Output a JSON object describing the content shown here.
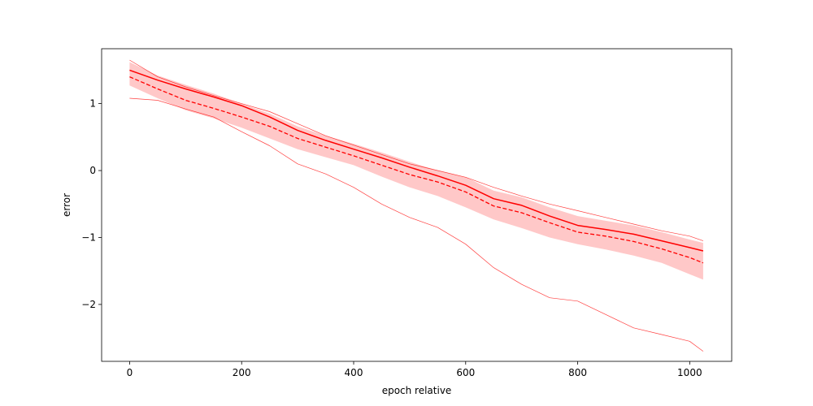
{
  "chart_data": {
    "type": "line",
    "title": "",
    "xlabel": "epoch relative",
    "ylabel": "error",
    "xlim": [
      -50,
      1075
    ],
    "ylim": [
      -2.85,
      1.82
    ],
    "xticks": [
      0,
      200,
      400,
      600,
      800,
      1000
    ],
    "yticks": [
      1,
      0,
      -1,
      -2
    ],
    "ytick_labels": [
      "1",
      "0",
      "−1",
      "−2"
    ],
    "grid": false,
    "legend": "none",
    "color": "#ff0000",
    "band_color": "#ffc8c8",
    "x": [
      0,
      50,
      100,
      150,
      200,
      250,
      300,
      350,
      400,
      450,
      500,
      550,
      600,
      650,
      700,
      750,
      800,
      850,
      900,
      950,
      1000,
      1024
    ],
    "series": [
      {
        "style": "solid",
        "values": [
          1.5,
          1.35,
          1.22,
          1.1,
          0.97,
          0.8,
          0.6,
          0.45,
          0.32,
          0.19,
          0.05,
          -0.08,
          -0.22,
          -0.42,
          -0.52,
          -0.68,
          -0.82,
          -0.88,
          -0.95,
          -1.05,
          -1.15,
          -1.2
        ]
      },
      {
        "style": "dashed",
        "values": [
          1.4,
          1.22,
          1.05,
          0.93,
          0.8,
          0.66,
          0.48,
          0.35,
          0.22,
          0.08,
          -0.06,
          -0.17,
          -0.32,
          -0.53,
          -0.63,
          -0.78,
          -0.92,
          -0.98,
          -1.06,
          -1.17,
          -1.3,
          -1.38
        ]
      },
      {
        "style": "thin",
        "values": [
          1.65,
          1.4,
          1.25,
          1.12,
          1.0,
          0.88,
          0.7,
          0.52,
          0.38,
          0.24,
          0.1,
          0.0,
          -0.1,
          -0.25,
          -0.38,
          -0.5,
          -0.6,
          -0.7,
          -0.8,
          -0.9,
          -0.98,
          -1.05
        ]
      },
      {
        "style": "thin",
        "values": [
          1.08,
          1.05,
          0.92,
          0.8,
          0.58,
          0.37,
          0.1,
          -0.05,
          -0.25,
          -0.5,
          -0.7,
          -0.85,
          -1.1,
          -1.45,
          -1.7,
          -1.9,
          -1.95,
          -2.15,
          -2.35,
          -2.45,
          -2.55,
          -2.7
        ]
      }
    ],
    "band": {
      "upper": [
        1.62,
        1.42,
        1.28,
        1.15,
        1.0,
        0.85,
        0.66,
        0.52,
        0.4,
        0.27,
        0.13,
        0.0,
        -0.1,
        -0.3,
        -0.4,
        -0.55,
        -0.68,
        -0.75,
        -0.82,
        -0.92,
        -1.03,
        -1.08
      ],
      "lower": [
        1.27,
        1.08,
        0.9,
        0.78,
        0.64,
        0.48,
        0.32,
        0.2,
        0.08,
        -0.09,
        -0.25,
        -0.38,
        -0.55,
        -0.73,
        -0.86,
        -1.0,
        -1.1,
        -1.18,
        -1.27,
        -1.38,
        -1.55,
        -1.63
      ]
    }
  }
}
